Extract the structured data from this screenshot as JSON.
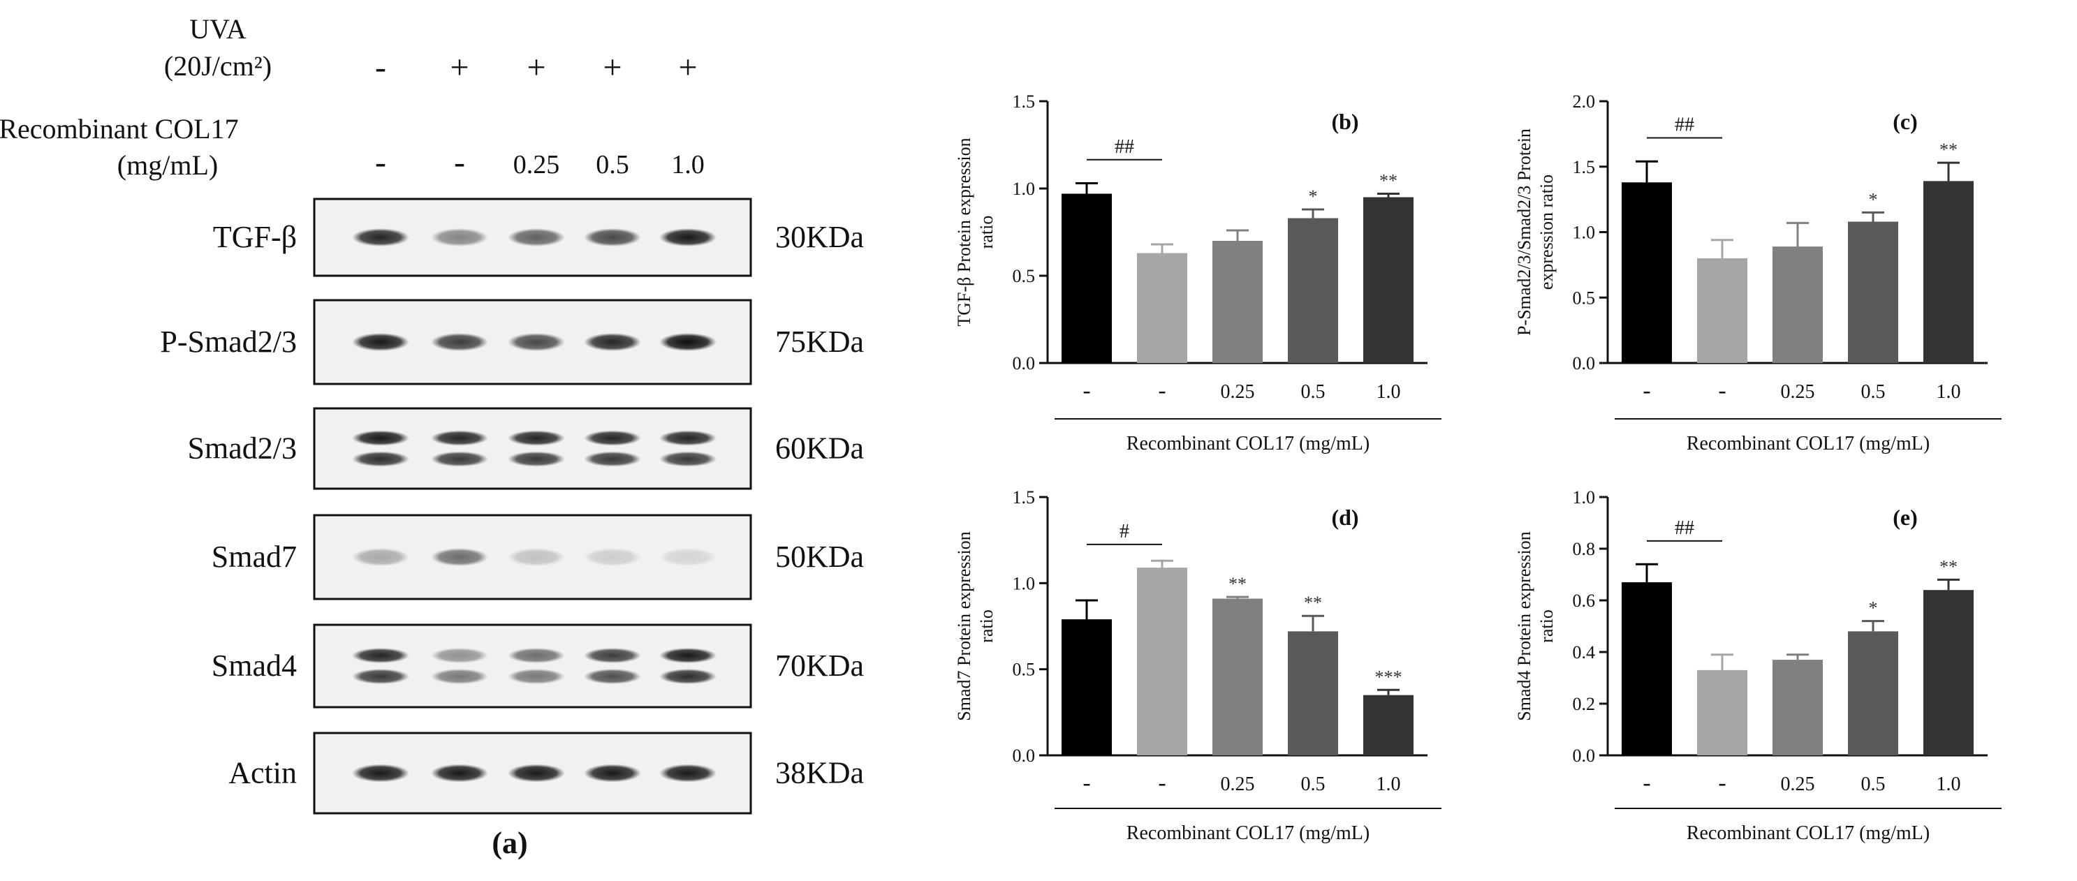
{
  "western_blot": {
    "conditions": [
      {
        "label": "UVA",
        "sublabel": "(20J/cm²)",
        "values": [
          "-",
          "+",
          "+",
          "+",
          "+"
        ]
      },
      {
        "label": "Recombinant COL17",
        "sublabel": "(mg/mL)",
        "values": [
          "-",
          "-",
          "0.25",
          "0.5",
          "1.0"
        ]
      }
    ],
    "bands": [
      {
        "name": "TGF-β",
        "size": "30KDa",
        "intensities": [
          0.85,
          0.45,
          0.6,
          0.7,
          0.9
        ],
        "double": false
      },
      {
        "name": "P-Smad2/3",
        "size": "75KDa",
        "intensities": [
          0.9,
          0.75,
          0.7,
          0.85,
          0.95
        ],
        "double": false
      },
      {
        "name": "Smad2/3",
        "size": "60KDa",
        "intensities": [
          0.9,
          0.85,
          0.85,
          0.85,
          0.85
        ],
        "double": true
      },
      {
        "name": "Smad7",
        "size": "50KDa",
        "intensities": [
          0.3,
          0.55,
          0.2,
          0.15,
          0.12
        ],
        "double": false
      },
      {
        "name": "Smad4",
        "size": "70KDa",
        "intensities": [
          0.85,
          0.4,
          0.55,
          0.75,
          0.9
        ],
        "double": true
      },
      {
        "name": "Actin",
        "size": "38KDa",
        "intensities": [
          0.9,
          0.9,
          0.9,
          0.9,
          0.9
        ],
        "double": false
      }
    ],
    "panel_label": "(a)"
  },
  "chart_data": [
    {
      "type": "bar",
      "panel": "(b)",
      "ylabel": [
        "TGF-β Protein expression",
        "ratio"
      ],
      "xlabel": "Recombinant COL17 (mg/mL)",
      "categories": [
        "-",
        "-",
        "0.25",
        "0.5",
        "1.0"
      ],
      "values": [
        0.97,
        0.63,
        0.7,
        0.83,
        0.95
      ],
      "errors": [
        0.06,
        0.05,
        0.06,
        0.05,
        0.02
      ],
      "colors": [
        "#000000",
        "#a6a6a6",
        "#808080",
        "#595959",
        "#333333"
      ],
      "ylim": [
        0,
        1.5
      ],
      "yticks": [
        "0.0",
        "0.5",
        "1.0",
        "1.5"
      ],
      "significance": [
        "",
        "",
        "",
        "*",
        "**"
      ],
      "bracket": {
        "label": "##",
        "from": 0,
        "to": 1
      }
    },
    {
      "type": "bar",
      "panel": "(c)",
      "ylabel": [
        "P-Smad2/3/Smad2/3 Protein",
        "expression ratio"
      ],
      "xlabel": "Recombinant COL17 (mg/mL)",
      "categories": [
        "-",
        "-",
        "0.25",
        "0.5",
        "1.0"
      ],
      "values": [
        1.38,
        0.8,
        0.89,
        1.08,
        1.39
      ],
      "errors": [
        0.16,
        0.14,
        0.18,
        0.07,
        0.14
      ],
      "colors": [
        "#000000",
        "#a6a6a6",
        "#808080",
        "#595959",
        "#333333"
      ],
      "ylim": [
        0,
        2.0
      ],
      "yticks": [
        "0.0",
        "0.5",
        "1.0",
        "1.5",
        "2.0"
      ],
      "significance": [
        "",
        "",
        "",
        "*",
        "**"
      ],
      "bracket": {
        "label": "##",
        "from": 0,
        "to": 1
      }
    },
    {
      "type": "bar",
      "panel": "(d)",
      "ylabel": [
        "Smad7 Protein expression",
        "ratio"
      ],
      "xlabel": "Recombinant COL17 (mg/mL)",
      "categories": [
        "-",
        "-",
        "0.25",
        "0.5",
        "1.0"
      ],
      "values": [
        0.79,
        1.09,
        0.91,
        0.72,
        0.35
      ],
      "errors": [
        0.11,
        0.04,
        0.01,
        0.09,
        0.03
      ],
      "colors": [
        "#000000",
        "#a6a6a6",
        "#808080",
        "#595959",
        "#333333"
      ],
      "ylim": [
        0,
        1.5
      ],
      "yticks": [
        "0.0",
        "0.5",
        "1.0",
        "1.5"
      ],
      "significance": [
        "",
        "",
        "**",
        "**",
        "***"
      ],
      "bracket": {
        "label": "#",
        "from": 0,
        "to": 1
      }
    },
    {
      "type": "bar",
      "panel": "(e)",
      "ylabel": [
        "Smad4 Protein expression",
        "ratio"
      ],
      "xlabel": "Recombinant COL17 (mg/mL)",
      "categories": [
        "-",
        "-",
        "0.25",
        "0.5",
        "1.0"
      ],
      "values": [
        0.67,
        0.33,
        0.37,
        0.48,
        0.64
      ],
      "errors": [
        0.07,
        0.06,
        0.02,
        0.04,
        0.04
      ],
      "colors": [
        "#000000",
        "#a6a6a6",
        "#808080",
        "#595959",
        "#333333"
      ],
      "ylim": [
        0,
        1.0
      ],
      "yticks": [
        "0.0",
        "0.2",
        "0.4",
        "0.6",
        "0.8",
        "1.0"
      ],
      "significance": [
        "",
        "",
        "",
        "*",
        "**"
      ],
      "bracket": {
        "label": "##",
        "from": 0,
        "to": 1
      }
    }
  ]
}
